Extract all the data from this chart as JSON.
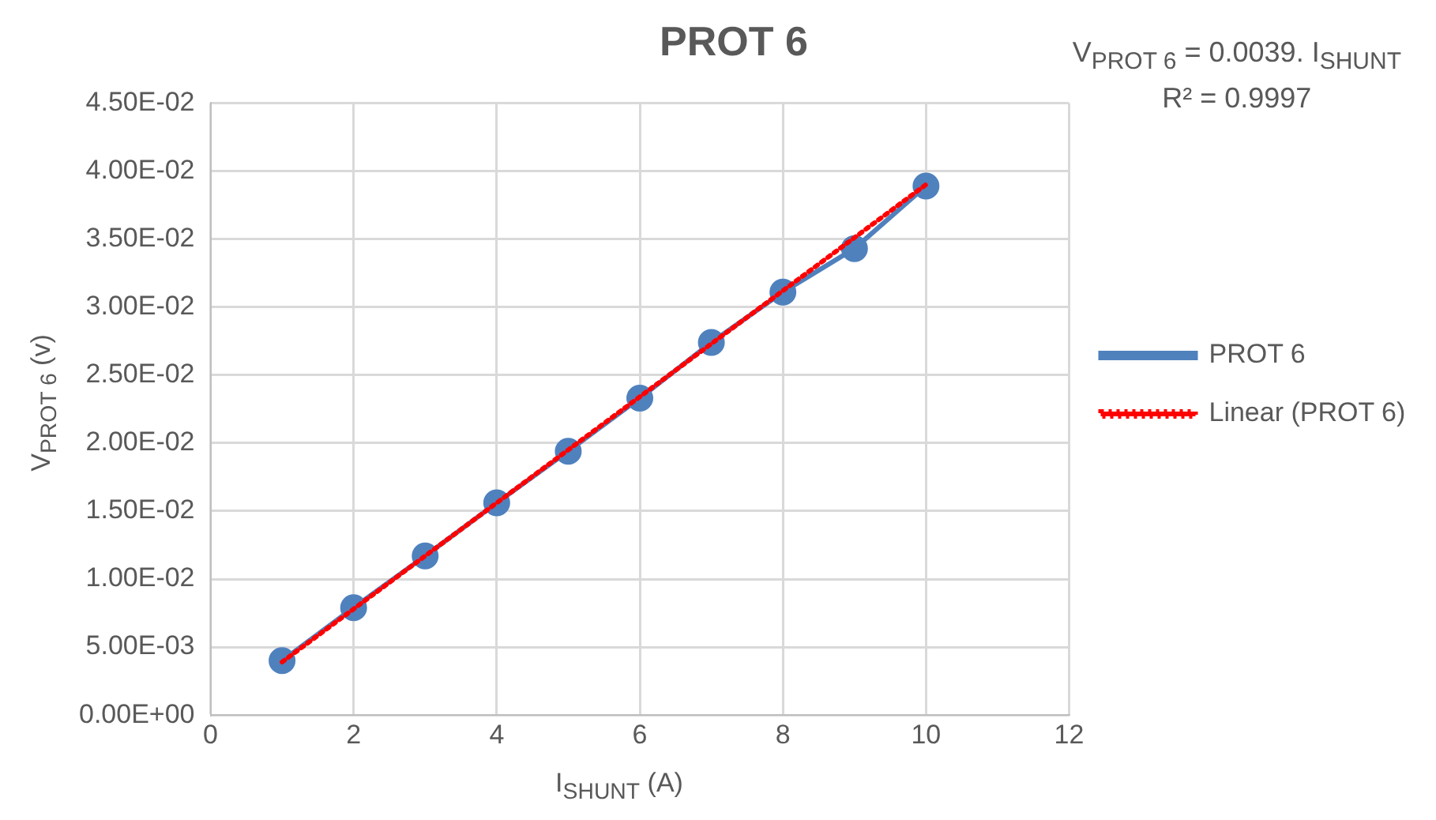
{
  "chart_data": {
    "type": "line",
    "title": "PROT 6",
    "xlabel": "I$_{SHUNT}$ (A)",
    "ylabel": "V$_{PROT 6}$ (v)",
    "annotations": [
      "V$_{PROT 6}$ = 0.0039. I$_{SHUNT}$",
      "R² = 0.9997"
    ],
    "x": [
      1,
      2,
      3,
      4,
      5,
      6,
      7,
      8,
      9,
      10
    ],
    "series": [
      {
        "name": "PROT 6",
        "color": "#4f81bd",
        "marker": "circle",
        "line_style": "solid",
        "values": [
          0.004,
          0.0079,
          0.0117,
          0.0156,
          0.0194,
          0.0233,
          0.0274,
          0.0311,
          0.0343,
          0.0389
        ]
      },
      {
        "name": "Linear (PROT 6)",
        "color": "#ff0000",
        "marker": "none",
        "line_style": "dotted",
        "x": [
          1,
          10
        ],
        "values": [
          0.0039,
          0.039
        ]
      }
    ],
    "xlim": [
      0,
      12
    ],
    "xticks": [
      0,
      2,
      4,
      6,
      8,
      10,
      12
    ],
    "ylim": [
      0,
      0.045
    ],
    "yticks": [
      {
        "value": 0,
        "label": "0.00E+00"
      },
      {
        "value": 0.005,
        "label": "5.00E-03"
      },
      {
        "value": 0.01,
        "label": "1.00E-02"
      },
      {
        "value": 0.015,
        "label": "1.50E-02"
      },
      {
        "value": 0.02,
        "label": "2.00E-02"
      },
      {
        "value": 0.025,
        "label": "2.50E-02"
      },
      {
        "value": 0.03,
        "label": "3.00E-02"
      },
      {
        "value": 0.035,
        "label": "3.50E-02"
      },
      {
        "value": 0.04,
        "label": "4.00E-02"
      },
      {
        "value": 0.045,
        "label": "4.50E-02"
      }
    ],
    "grid": true,
    "legend": "right"
  }
}
